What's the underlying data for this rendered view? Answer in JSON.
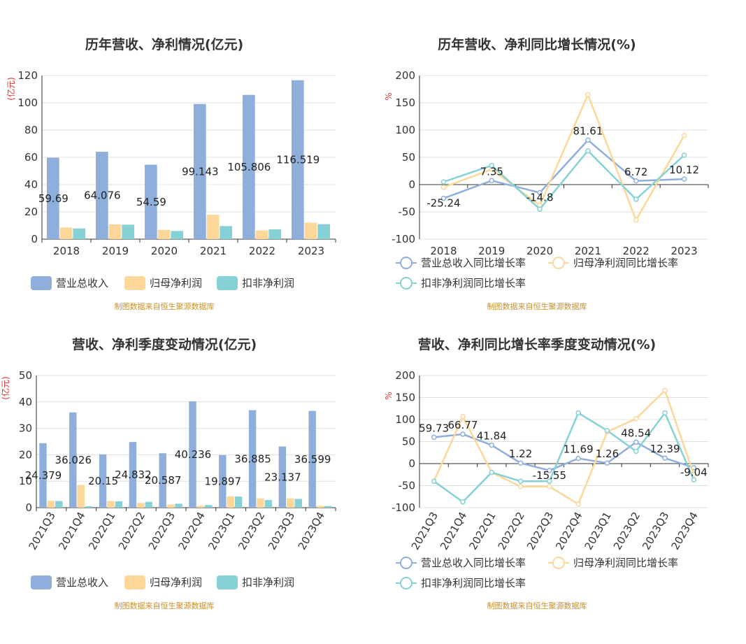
{
  "colors": {
    "revenue": "#8eaedb",
    "netProfit": "#fcd799",
    "deductProfit": "#86d1d6"
  },
  "chart_data": [
    {
      "id": "annual-amount",
      "type": "bar",
      "title": "历年营收、净利情况(亿元)",
      "unit": "(亿元)",
      "categories": [
        "2018",
        "2019",
        "2020",
        "2021",
        "2022",
        "2023"
      ],
      "ylim": [
        0,
        120
      ],
      "yticks": [
        "0",
        "20",
        "40",
        "60",
        "80",
        "100",
        "120"
      ],
      "series": [
        {
          "name": "营业总收入",
          "values": [
            59.69,
            64.076,
            54.59,
            99.143,
            105.806,
            116.519
          ],
          "labels": [
            "59.69",
            "64.076",
            "54.59",
            "99.143",
            "105.806",
            "116.519"
          ]
        },
        {
          "name": "归母净利润",
          "values": [
            8.5,
            10.8,
            6.8,
            17.9,
            6.4,
            12.0
          ]
        },
        {
          "name": "扣非净利润",
          "values": [
            7.8,
            10.6,
            6.0,
            9.6,
            7.2,
            11.0
          ]
        }
      ],
      "legend": "bottom",
      "source": "制图数据来自恒生聚源数据库"
    },
    {
      "id": "annual-growth",
      "type": "line",
      "title": "历年营收、净利同比增长情况(%)",
      "unit": "%",
      "categories": [
        "2018",
        "2019",
        "2020",
        "2021",
        "2022",
        "2023"
      ],
      "ylim": [
        -100,
        200
      ],
      "yticks": [
        "-100",
        "-50",
        "0",
        "50",
        "100",
        "150",
        "200"
      ],
      "series": [
        {
          "name": "营业总收入同比增长率",
          "values": [
            -25.24,
            7.35,
            -14.8,
            81.61,
            6.72,
            10.12
          ],
          "labels": [
            "-25.24",
            "7.35",
            "-14.8",
            "81.61",
            "6.72",
            "10.12"
          ]
        },
        {
          "name": "归母净利润同比增长率",
          "values": [
            -5,
            28,
            -38,
            165,
            -65,
            90
          ]
        },
        {
          "name": "扣非净利润同比增长率",
          "values": [
            5,
            35,
            -45,
            62,
            -27,
            54
          ]
        }
      ],
      "legend": "bottom",
      "source": "制图数据来自恒生聚源数据库"
    },
    {
      "id": "quarter-amount",
      "type": "bar",
      "title": "营收、净利季度变动情况(亿元)",
      "unit": "(亿元)",
      "categories": [
        "2021Q3",
        "2021Q4",
        "2022Q1",
        "2022Q2",
        "2022Q3",
        "2022Q4",
        "2023Q1",
        "2023Q2",
        "2023Q3",
        "2023Q4"
      ],
      "ylim": [
        0,
        50
      ],
      "yticks": [
        "0",
        "10",
        "20",
        "30",
        "40",
        "50"
      ],
      "series": [
        {
          "name": "营业总收入",
          "values": [
            24.379,
            36.026,
            20.15,
            24.832,
            20.587,
            40.236,
            19.897,
            36.885,
            23.137,
            36.599
          ],
          "labels": [
            "24.379",
            "36.026",
            "20.15",
            "24.832",
            "20.587",
            "40.236",
            "19.897",
            "36.885",
            "23.137",
            "36.599"
          ]
        },
        {
          "name": "归母净利润",
          "values": [
            2.6,
            8.6,
            2.5,
            1.8,
            1.2,
            0.7,
            4.3,
            3.5,
            3.5,
            0.7
          ]
        },
        {
          "name": "扣非净利润",
          "values": [
            2.5,
            0.5,
            2.4,
            2.2,
            1.5,
            1.0,
            4.2,
            2.9,
            3.3,
            0.6
          ]
        }
      ],
      "legend": "bottom",
      "source": "制图数据来自恒生聚源数据库"
    },
    {
      "id": "quarter-growth",
      "type": "line",
      "title": "营收、净利同比增长率季度变动情况(%)",
      "unit": "%",
      "categories": [
        "2021Q3",
        "2021Q4",
        "2022Q1",
        "2022Q2",
        "2022Q3",
        "2022Q4",
        "2023Q1",
        "2023Q2",
        "2023Q3",
        "2023Q4"
      ],
      "ylim": [
        -100,
        200
      ],
      "yticks": [
        "-100",
        "-50",
        "0",
        "50",
        "100",
        "150",
        "200"
      ],
      "series": [
        {
          "name": "营业总收入同比增长率",
          "values": [
            59.73,
            66.77,
            41.84,
            1.22,
            -15.55,
            11.69,
            1.26,
            48.54,
            12.39,
            -9.04
          ],
          "labels": [
            "59.73",
            "66.77",
            "41.84",
            "1.22",
            "-15.55",
            "11.69",
            "1.26",
            "48.54",
            "12.39",
            "-9.04"
          ]
        },
        {
          "name": "归母净利润同比增长率",
          "values": [
            -40,
            107,
            -20,
            -52,
            -52,
            -92,
            72,
            102,
            166,
            -25
          ]
        },
        {
          "name": "扣非净利润同比增长率",
          "values": [
            -40,
            -87,
            -20,
            -40,
            -40,
            115,
            75,
            28,
            115,
            -37
          ]
        }
      ],
      "legend": "bottom",
      "source": "制图数据来自恒生聚源数据库"
    }
  ]
}
